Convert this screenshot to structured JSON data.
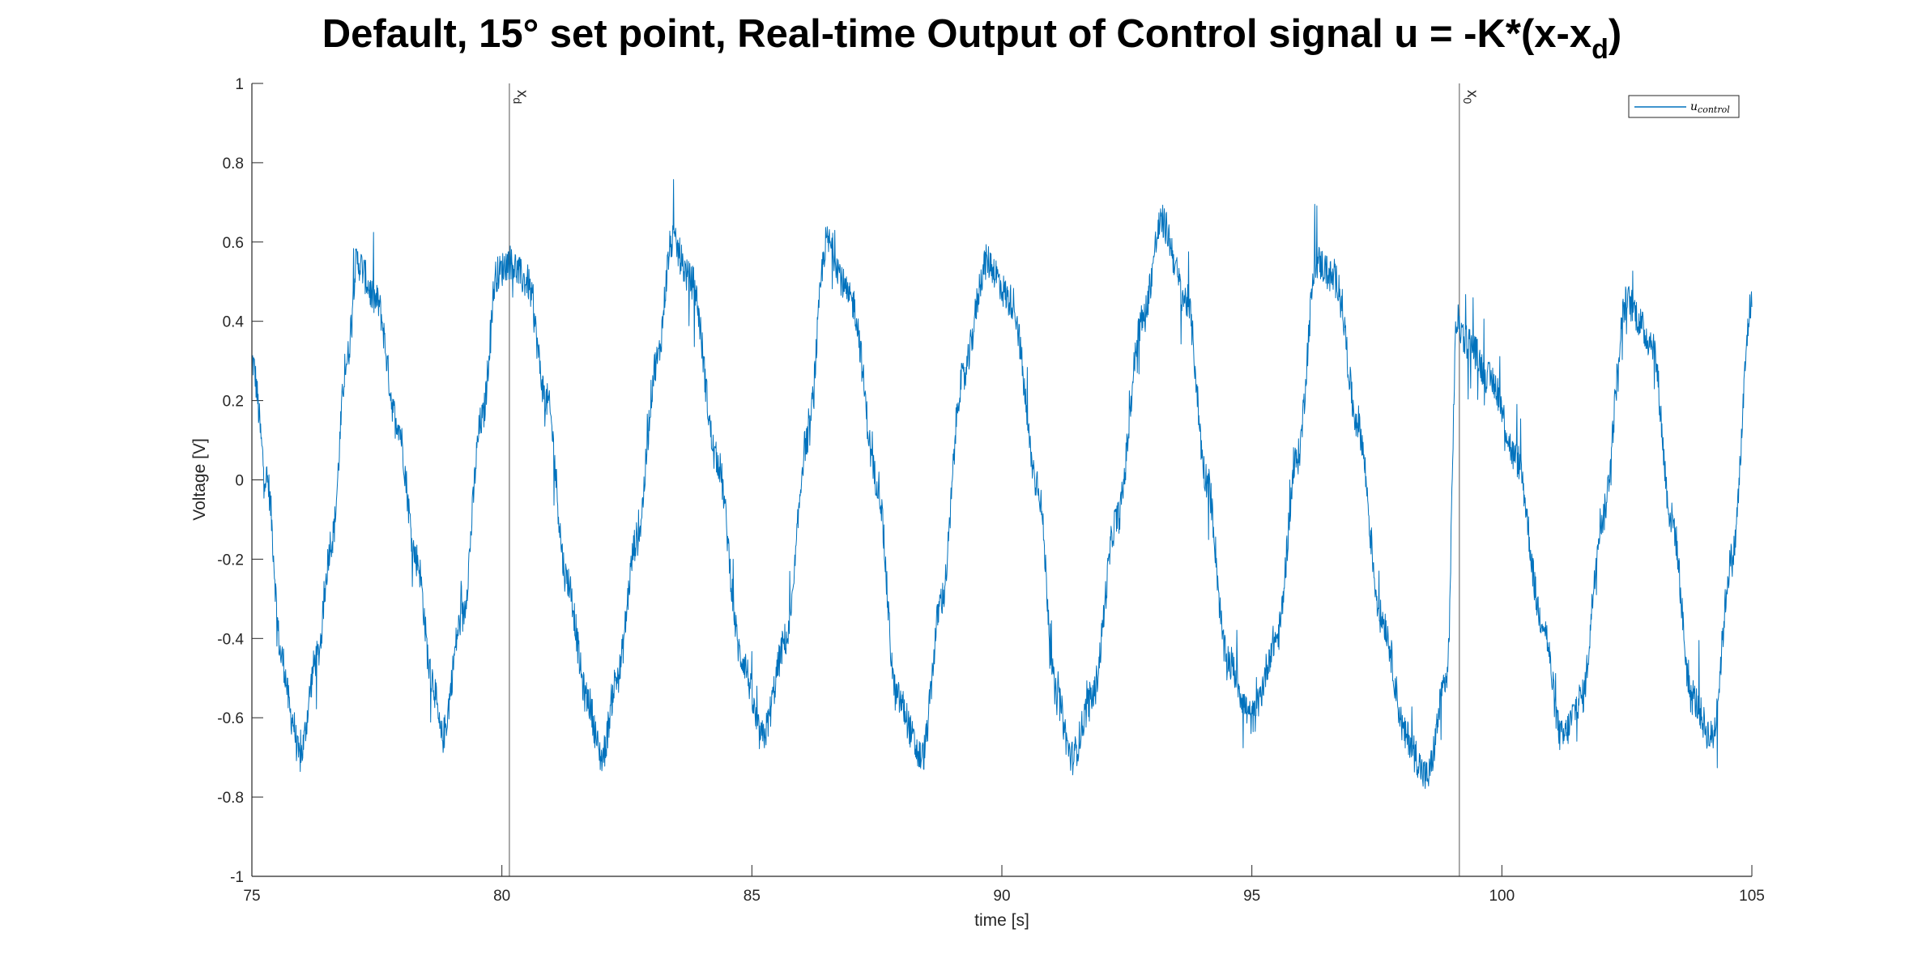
{
  "chart_data": {
    "type": "line",
    "title": "Default, 15° set point, Real-time Output of Control signal u = -K*(x-x",
    "title_subscript": "d",
    "title_suffix": ")",
    "xlabel": "time [s]",
    "ylabel": "Voltage [V]",
    "xlim": [
      75,
      105
    ],
    "ylim": [
      -1,
      1
    ],
    "x_ticks": [
      75,
      80,
      85,
      90,
      95,
      100,
      105
    ],
    "y_ticks": [
      -1,
      -0.8,
      -0.6,
      -0.4,
      -0.2,
      0,
      0.2,
      0.4,
      0.6,
      0.8,
      1
    ],
    "x_tick_labels": [
      "75",
      "80",
      "85",
      "90",
      "95",
      "100",
      "105"
    ],
    "y_tick_labels": [
      "-1",
      "-0.8",
      "-0.6",
      "-0.4",
      "-0.2",
      "0",
      "0.2",
      "0.4",
      "0.6",
      "0.8",
      "1"
    ],
    "grid": false,
    "legend": {
      "placement": "top-right",
      "entries": [
        "u_control"
      ],
      "display_main": "u",
      "display_sub": "control"
    },
    "vertical_lines": [
      {
        "x": 80.15,
        "label": "x",
        "label_sub": "d"
      },
      {
        "x": 99.15,
        "label": "x",
        "label_sub": "0"
      }
    ],
    "series": [
      {
        "name": "u_control",
        "color": "#0072BD",
        "x": [
          75.0,
          75.3,
          75.6,
          75.8,
          75.95,
          76.3,
          76.6,
          76.9,
          77.1,
          77.5,
          77.9,
          78.3,
          78.6,
          78.8,
          79.2,
          79.6,
          79.9,
          80.15,
          80.5,
          80.9,
          81.3,
          81.7,
          82.0,
          82.3,
          82.7,
          83.1,
          83.4,
          83.8,
          84.3,
          84.8,
          85.2,
          85.7,
          86.1,
          86.5,
          87.0,
          87.5,
          87.9,
          88.4,
          88.8,
          89.2,
          89.7,
          90.2,
          90.7,
          91.1,
          91.4,
          91.8,
          92.3,
          92.8,
          93.2,
          93.7,
          94.1,
          94.5,
          95.0,
          95.5,
          95.9,
          96.3,
          96.7,
          97.1,
          97.6,
          98.1,
          98.5,
          98.9,
          99.1,
          99.3,
          99.8,
          100.3,
          100.8,
          101.2,
          101.6,
          102.0,
          102.5,
          103.0,
          103.4,
          103.8,
          104.2,
          104.6,
          105.0
        ],
        "y": [
          0.3,
          0.0,
          -0.45,
          -0.6,
          -0.7,
          -0.45,
          -0.15,
          0.3,
          0.55,
          0.45,
          0.15,
          -0.2,
          -0.5,
          -0.65,
          -0.35,
          0.15,
          0.52,
          0.55,
          0.5,
          0.2,
          -0.25,
          -0.55,
          -0.7,
          -0.5,
          -0.15,
          0.3,
          0.6,
          0.5,
          0.05,
          -0.45,
          -0.65,
          -0.4,
          0.1,
          0.6,
          0.45,
          0.0,
          -0.55,
          -0.7,
          -0.3,
          0.25,
          0.55,
          0.45,
          0.0,
          -0.55,
          -0.7,
          -0.55,
          -0.1,
          0.4,
          0.65,
          0.45,
          0.0,
          -0.45,
          -0.6,
          -0.4,
          0.05,
          0.55,
          0.5,
          0.15,
          -0.35,
          -0.65,
          -0.75,
          -0.5,
          0.4,
          0.35,
          0.25,
          0.05,
          -0.35,
          -0.65,
          -0.55,
          -0.1,
          0.45,
          0.35,
          -0.1,
          -0.55,
          -0.65,
          -0.2,
          0.45
        ]
      }
    ]
  }
}
